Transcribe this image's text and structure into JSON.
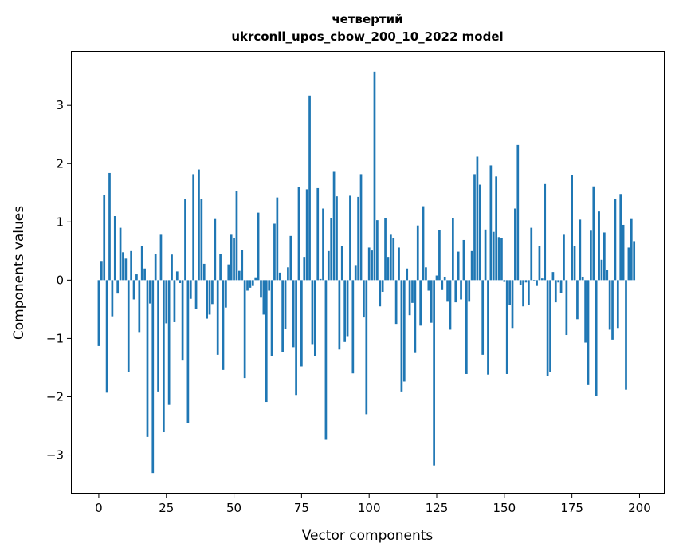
{
  "chart_data": {
    "type": "bar",
    "title_line1": "четвертий",
    "title_line2": "ukrconll_upos_cbow_200_10_2022 model",
    "xlabel": "Vector components",
    "ylabel": "Components values",
    "xlim": [
      -10,
      209
    ],
    "ylim": [
      -3.65,
      3.92
    ],
    "xticks": [
      0,
      25,
      50,
      75,
      100,
      125,
      150,
      175,
      200
    ],
    "yticks": [
      -3,
      -2,
      -1,
      0,
      1,
      2,
      3
    ],
    "ytick_labels": [
      "−3",
      "−2",
      "−1",
      "0",
      "1",
      "2",
      "3"
    ],
    "bar_color": "#1f77b4",
    "grid": false,
    "values": [
      -1.13,
      0.33,
      1.46,
      -1.93,
      1.84,
      -0.62,
      1.1,
      -0.23,
      0.9,
      0.48,
      0.37,
      -1.57,
      0.5,
      -0.33,
      0.1,
      -0.89,
      0.58,
      0.2,
      -2.69,
      -0.4,
      -3.31,
      0.45,
      -1.91,
      0.78,
      -2.61,
      -0.74,
      -2.14,
      0.44,
      -0.72,
      0.15,
      -0.05,
      -1.38,
      1.39,
      -2.45,
      -0.32,
      1.82,
      -0.5,
      1.9,
      1.39,
      0.28,
      -0.66,
      -0.59,
      -0.41,
      1.05,
      -1.28,
      0.45,
      -1.54,
      -0.47,
      0.27,
      0.78,
      0.72,
      1.53,
      0.16,
      0.52,
      -1.68,
      -0.18,
      -0.13,
      -0.1,
      0.05,
      1.16,
      -0.3,
      -0.59,
      -2.09,
      -0.18,
      -1.3,
      0.97,
      1.42,
      0.13,
      -1.23,
      -0.84,
      0.22,
      0.76,
      -1.15,
      -1.97,
      1.6,
      -1.48,
      0.4,
      1.56,
      3.17,
      -1.11,
      -1.3,
      1.58,
      0.02,
      1.23,
      -2.74,
      0.5,
      1.06,
      1.86,
      1.44,
      -1.19,
      0.58,
      -1.06,
      -0.96,
      1.45,
      -1.6,
      0.26,
      1.43,
      1.82,
      -0.64,
      -2.3,
      0.56,
      0.51,
      3.58,
      1.03,
      -0.45,
      -0.2,
      1.07,
      0.4,
      0.78,
      0.72,
      -0.75,
      0.56,
      -1.91,
      -1.74,
      0.2,
      -0.6,
      -0.39,
      -1.25,
      0.94,
      -0.78,
      1.27,
      0.22,
      -0.18,
      -0.73,
      -3.18,
      0.08,
      0.86,
      -0.17,
      0.06,
      -0.37,
      -0.85,
      1.07,
      -0.38,
      0.49,
      -0.33,
      0.69,
      -1.61,
      -0.37,
      0.5,
      1.82,
      2.12,
      1.64,
      -1.28,
      0.87,
      -1.62,
      1.97,
      0.83,
      1.78,
      0.74,
      0.72,
      -0.03,
      -1.61,
      -0.43,
      -0.82,
      1.23,
      2.32,
      -0.08,
      -0.45,
      -0.04,
      -0.43,
      0.9,
      -0.02,
      -0.1,
      0.58,
      0.03,
      1.65,
      -1.65,
      -1.58,
      0.14,
      -0.38,
      -0.04,
      -0.22,
      0.78,
      -0.94,
      0.0,
      1.8,
      0.59,
      -0.67,
      1.04,
      0.06,
      -1.07,
      -1.8,
      0.85,
      1.61,
      -1.99,
      1.18,
      0.35,
      0.82,
      0.18,
      -0.85,
      -1.02,
      1.39,
      -0.82,
      1.48,
      0.95,
      -1.88,
      0.56,
      1.05,
      0.67,
      0.0
    ]
  }
}
